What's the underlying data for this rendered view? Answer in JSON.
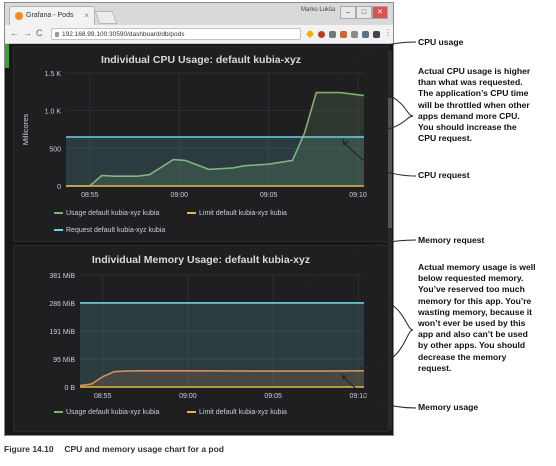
{
  "browser": {
    "tab_title": "Grafana - Pods",
    "tab_close": "×",
    "user_name": "Marko Lukša",
    "url": "192.168.99.100:30590/dashboard/db/pods",
    "nav_back": "←",
    "nav_forward": "→",
    "nav_reload": "C",
    "win_min": "–",
    "win_max": "□",
    "win_close": "✕"
  },
  "cpu_panel": {
    "title": "Individual CPU Usage: default kubia-xyz",
    "ylabel": "Millicores",
    "legend": [
      "Usage default kubia-xyz kubia",
      "Limit default kubia-xyz kubia",
      "Request default kubia-xyz kubia"
    ]
  },
  "mem_panel": {
    "title": "Individual Memory Usage: default kubia-xyz",
    "legend": [
      "Usage default kubia-xyz kubia",
      "Limit default kubia-xyz kubia"
    ]
  },
  "colors": {
    "usage": "#7eb26d",
    "limit": "#eab839",
    "request": "#6ed0e0",
    "mem_request": "#6ed0e0",
    "mem_usage": "#ef843c"
  },
  "chart_data": [
    {
      "type": "line",
      "title": "Individual CPU Usage: default kubia-xyz",
      "ylabel": "Millicores",
      "x_ticks": [
        "08:55",
        "09:00",
        "09:05",
        "09:10"
      ],
      "y_ticks": [
        "0",
        "500",
        "1.0 K",
        "1.5 K"
      ],
      "ylim": [
        0,
        1500
      ],
      "series": [
        {
          "name": "Usage default kubia-xyz kubia",
          "x": [
            "08:53:40",
            "08:54:20",
            "08:55:00",
            "08:55:40",
            "08:56:20",
            "08:57:40",
            "08:58:20",
            "08:59:00",
            "08:59:40",
            "09:00:20",
            "09:01:40",
            "09:02:20",
            "09:03:00",
            "09:03:40",
            "09:04:20",
            "09:05:00",
            "09:06:20",
            "09:07:00",
            "09:07:40",
            "09:08:20",
            "09:09:00",
            "09:09:40",
            "09:10:20"
          ],
          "values": [
            0,
            0,
            0,
            140,
            130,
            130,
            150,
            250,
            350,
            340,
            220,
            230,
            240,
            270,
            280,
            290,
            340,
            700,
            1240,
            1240,
            1240,
            1220,
            1200
          ]
        },
        {
          "name": "Limit default kubia-xyz kubia",
          "x": [
            "08:53:40",
            "09:10:20"
          ],
          "values": [
            0,
            0
          ]
        },
        {
          "name": "Request default kubia-xyz kubia",
          "x": [
            "08:53:40",
            "09:10:20"
          ],
          "values": [
            650,
            650
          ]
        }
      ]
    },
    {
      "type": "line",
      "title": "Individual Memory Usage: default kubia-xyz",
      "x_ticks": [
        "08:55",
        "09:00",
        "09:05",
        "09:10"
      ],
      "y_ticks": [
        "0 B",
        "95 MiB",
        "191 MiB",
        "286 MiB",
        "381 MiB"
      ],
      "ylim": [
        0,
        381
      ],
      "series": [
        {
          "name": "Usage default kubia-xyz kubia",
          "x": [
            "08:53:40",
            "08:54:20",
            "08:55:00",
            "08:55:40",
            "08:56:20",
            "08:57:00",
            "08:58:00",
            "09:00:00",
            "09:04:00",
            "09:08:00",
            "09:10:20"
          ],
          "values": [
            5,
            10,
            35,
            52,
            54,
            55,
            55,
            55,
            54,
            54,
            55
          ]
        },
        {
          "name": "Limit default kubia-xyz kubia",
          "x": [
            "08:53:40",
            "09:10:20"
          ],
          "values": [
            0,
            0
          ]
        },
        {
          "name": "Request default kubia-xyz kubia",
          "x": [
            "08:53:40",
            "09:10:20"
          ],
          "values": [
            286,
            286
          ]
        }
      ]
    }
  ],
  "annotations": {
    "cpu_usage": "CPU usage",
    "cpu_note": [
      "Actual CPU usage is higher",
      "than what was requested.",
      "The application’s CPU time",
      "will be throttled when other",
      "apps demand more CPU.",
      "You should increase the",
      "CPU request."
    ],
    "cpu_request": "CPU request",
    "memory_request": "Memory request",
    "memory_note": [
      "Actual memory usage is well",
      "below requested memory.",
      "You’ve reserved too much",
      "memory for this app. You’re",
      "wasting memory, because it",
      "won’t ever be used by this",
      "app and also can’t be used",
      "by other apps. You should",
      "decrease the memory",
      "request."
    ],
    "memory_usage": "Memory usage"
  },
  "caption": {
    "label": "Figure 14.10",
    "text": "CPU and memory usage chart for a pod"
  }
}
